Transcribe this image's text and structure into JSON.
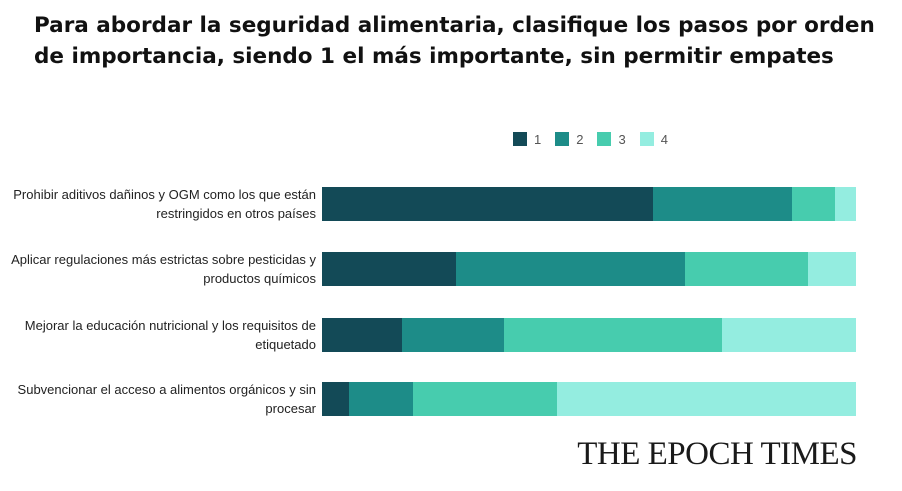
{
  "title": "Para abordar la seguridad alimentaria, clasifique los pasos por orden de importancia, siendo 1 el más importante, sin permitir empates",
  "logo": "THE EPOCH TIMES",
  "chart_data": {
    "type": "bar",
    "orientation": "horizontal",
    "stacked": true,
    "normalized_percent": true,
    "title": "Para abordar la seguridad alimentaria, clasifique los pasos por orden de importancia, siendo 1 el más importante, sin permitir empates",
    "categories": [
      "Prohibir aditivos dañinos y OGM como los que están restringidos en otros países",
      "Aplicar regulaciones más estrictas sobre pesticidas y productos químicos",
      "Mejorar la educación nutricional y los requisitos de etiquetado",
      "Subvencionar el acceso a alimentos orgánicos y sin procesar"
    ],
    "series": [
      {
        "name": "1",
        "color": "#134a57",
        "values": [
          62,
          25,
          15,
          5
        ]
      },
      {
        "name": "2",
        "color": "#1d8c88",
        "values": [
          26,
          43,
          19,
          12
        ]
      },
      {
        "name": "3",
        "color": "#47ccae",
        "values": [
          8,
          23,
          41,
          27
        ]
      },
      {
        "name": "4",
        "color": "#94ede0",
        "values": [
          4,
          9,
          25,
          56
        ]
      }
    ],
    "xlim": [
      0,
      100
    ],
    "legend_position": "top-right",
    "grid": false
  }
}
